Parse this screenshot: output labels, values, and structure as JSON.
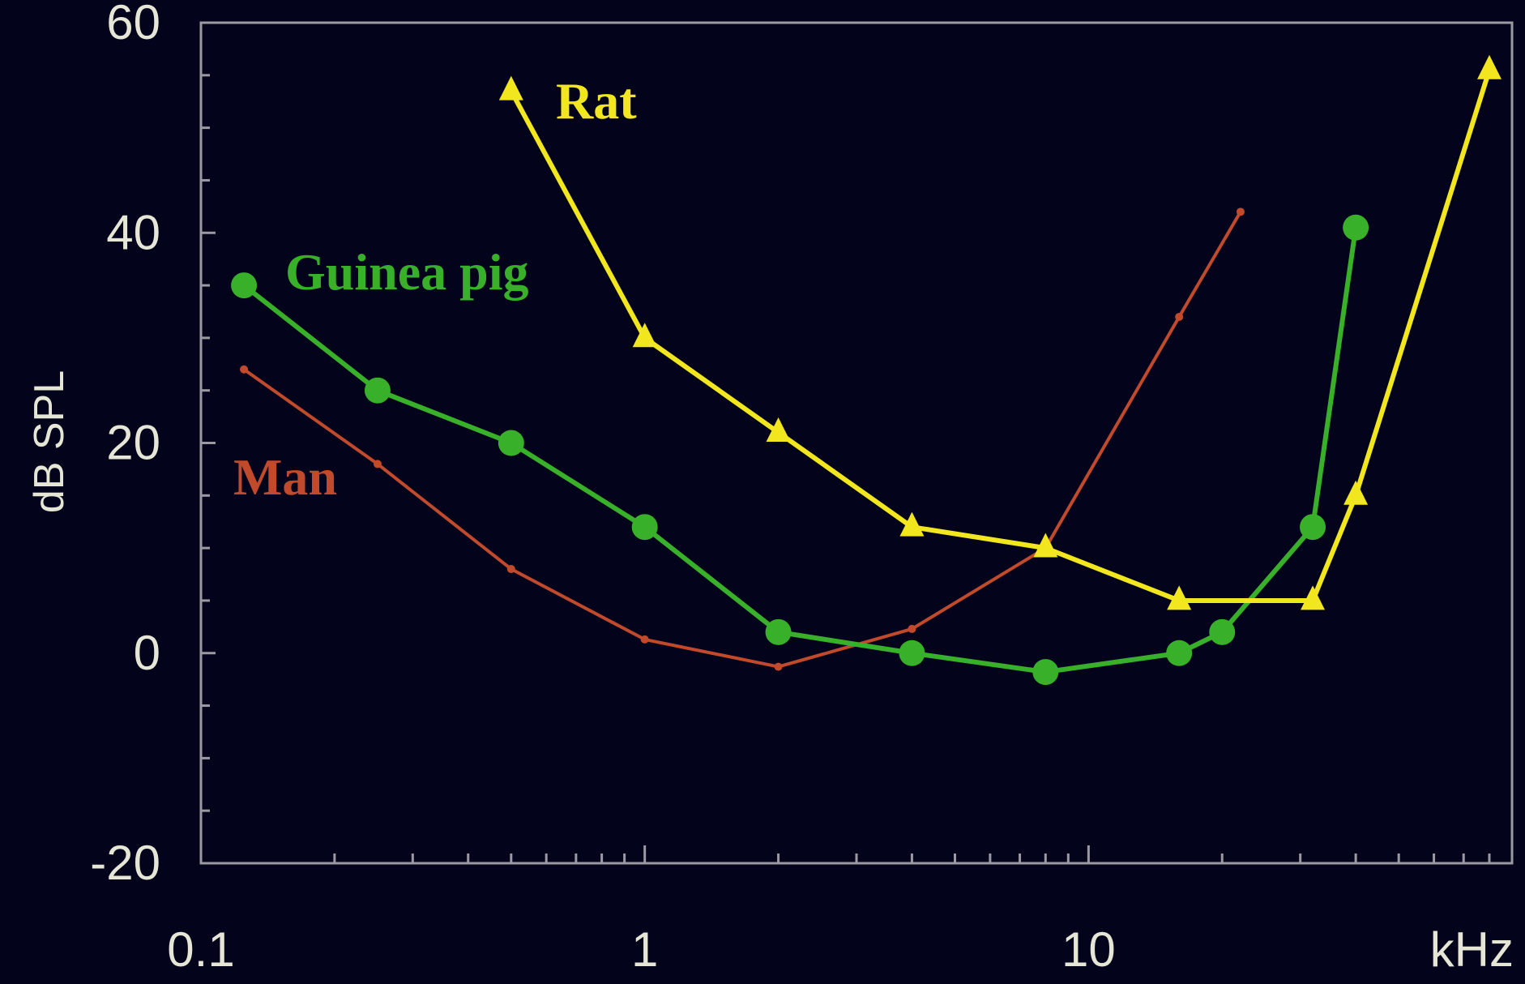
{
  "chart_data": {
    "type": "line",
    "title": "",
    "xlabel": "",
    "x_unit_label": "kHz",
    "ylabel": "dB SPL",
    "xscale": "log",
    "xlim": [
      0.1,
      90
    ],
    "ylim": [
      -20,
      60
    ],
    "x_tick_labels": [
      {
        "value": 0.1,
        "label": "0.1"
      },
      {
        "value": 1,
        "label": "1"
      },
      {
        "value": 10,
        "label": "10"
      }
    ],
    "y_tick_labels": [
      {
        "value": 60,
        "label": "60"
      },
      {
        "value": 40,
        "label": "40"
      },
      {
        "value": 20,
        "label": "20"
      },
      {
        "value": 0,
        "label": "0"
      },
      {
        "value": -20,
        "label": "-20"
      }
    ],
    "grid": false,
    "series": [
      {
        "name": "Rat",
        "color": "#f2e61e",
        "marker": "triangle",
        "x": [
          0.5,
          1,
          2,
          4,
          8,
          16,
          32,
          40,
          80
        ],
        "y": [
          53.5,
          30,
          21,
          12,
          10,
          5,
          5,
          15,
          55.5
        ]
      },
      {
        "name": "Guinea pig",
        "color": "#38b02a",
        "marker": "circle",
        "x": [
          0.125,
          0.25,
          0.5,
          1,
          2,
          4,
          8,
          16,
          20,
          32,
          40
        ],
        "y": [
          35,
          25,
          20,
          12,
          2,
          0,
          -1.8,
          0,
          2,
          12,
          40.5
        ]
      },
      {
        "name": "Man",
        "color": "#c24a2c",
        "marker": "dot",
        "x": [
          0.125,
          0.25,
          0.5,
          1,
          2,
          4,
          8,
          16,
          22
        ],
        "y": [
          27,
          18,
          8,
          1.3,
          -1.3,
          2.3,
          10,
          32,
          42
        ]
      }
    ]
  }
}
